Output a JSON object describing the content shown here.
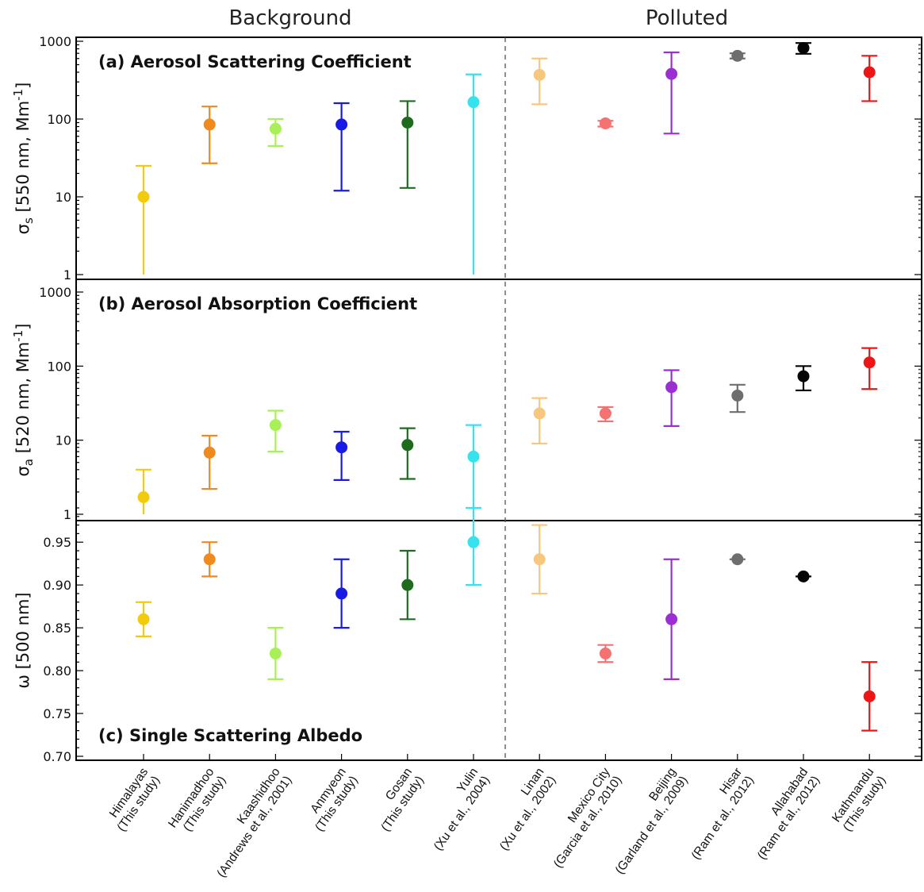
{
  "group_labels": [
    "Background",
    "Polluted"
  ],
  "chart_data": [
    {
      "type": "scatter",
      "title": "(a) Aerosol Scattering Coefficient",
      "ylabel": {
        "main": "σ",
        "sub": "s",
        "rest": " [550 nm, Mm",
        "sup": "-1",
        "end": "]"
      },
      "yscale": "log",
      "ylim": [
        1,
        1000
      ],
      "yticks": [
        "1",
        "10",
        "100",
        "1000"
      ],
      "points": [
        {
          "y": 10,
          "low": 1,
          "high": 25
        },
        {
          "y": 85,
          "low": 27,
          "high": 145
        },
        {
          "y": 75,
          "low": 45,
          "high": 100
        },
        {
          "y": 85,
          "low": 12,
          "high": 160
        },
        {
          "y": 90,
          "low": 13,
          "high": 170
        },
        {
          "y": 165,
          "low": 1,
          "high": 375
        },
        {
          "y": 370,
          "low": 155,
          "high": 600
        },
        {
          "y": 88,
          "low": 80,
          "high": 95
        },
        {
          "y": 380,
          "low": 65,
          "high": 720
        },
        {
          "y": 650,
          "low": 600,
          "high": 700
        },
        {
          "y": 820,
          "low": 690,
          "high": 950
        },
        {
          "y": 400,
          "low": 170,
          "high": 650
        }
      ]
    },
    {
      "type": "scatter",
      "title": "(b) Aerosol Absorption Coefficient",
      "ylabel": {
        "main": "σ",
        "sub": "a",
        "rest": " [520 nm, Mm",
        "sup": "-1",
        "end": "]"
      },
      "yscale": "log",
      "ylim": [
        1,
        1000
      ],
      "yticks": [
        "1",
        "10",
        "100",
        "1000"
      ],
      "points": [
        {
          "y": 1.7,
          "low": 1,
          "high": 4
        },
        {
          "y": 6.8,
          "low": 2.2,
          "high": 11.5
        },
        {
          "y": 16,
          "low": 7,
          "high": 25
        },
        {
          "y": 8,
          "low": 2.9,
          "high": 13
        },
        {
          "y": 8.6,
          "low": 3,
          "high": 14.5
        },
        {
          "y": 6,
          "low": 1,
          "high": 16
        },
        {
          "y": 23,
          "low": 9,
          "high": 37
        },
        {
          "y": 23,
          "low": 18,
          "high": 28
        },
        {
          "y": 52,
          "low": 15.5,
          "high": 88
        },
        {
          "y": 40,
          "low": 24,
          "high": 56
        },
        {
          "y": 73,
          "low": 47,
          "high": 100
        },
        {
          "y": 112,
          "low": 49,
          "high": 175
        }
      ]
    },
    {
      "type": "scatter",
      "title": "(c) Single Scattering Albedo",
      "ylabel": {
        "main": "ω [500 nm]"
      },
      "yscale": "linear",
      "ylim": [
        0.7,
        0.99
      ],
      "yticks": [
        "0.70",
        "0.75",
        "0.80",
        "0.85",
        "0.90",
        "0.95"
      ],
      "points": [
        {
          "y": 0.86,
          "low": 0.84,
          "high": 0.88
        },
        {
          "y": 0.93,
          "low": 0.91,
          "high": 0.95
        },
        {
          "y": 0.82,
          "low": 0.79,
          "high": 0.85
        },
        {
          "y": 0.89,
          "low": 0.85,
          "high": 0.93
        },
        {
          "y": 0.9,
          "low": 0.86,
          "high": 0.94
        },
        {
          "y": 0.95,
          "low": 0.9,
          "high": 0.99
        },
        {
          "y": 0.93,
          "low": 0.89,
          "high": 0.97
        },
        {
          "y": 0.82,
          "low": 0.81,
          "high": 0.83
        },
        {
          "y": 0.86,
          "low": 0.79,
          "high": 0.93
        },
        {
          "y": 0.93,
          "low": 0.93,
          "high": 0.93
        },
        {
          "y": 0.91,
          "low": 0.91,
          "high": 0.91
        },
        {
          "y": 0.77,
          "low": 0.73,
          "high": 0.81
        }
      ]
    }
  ],
  "sites": [
    {
      "name": "Himalayas",
      "ref": "(This study)",
      "color": "#f2cc0c",
      "label_color": "#111111"
    },
    {
      "name": "Hanimadhoo",
      "ref": "(This study)",
      "color": "#f08a1e",
      "label_color": "#111111"
    },
    {
      "name": "Kaashidhoo",
      "ref": "(Andrews et al., 2001)",
      "color": "#a8ef58",
      "label_color": "#111111"
    },
    {
      "name": "Anmyeon",
      "ref": "(This study)",
      "color": "#1a1ae6",
      "label_color": "#111111"
    },
    {
      "name": "Gosan",
      "ref": "(This study)",
      "color": "#1e6b1e",
      "label_color": "#111111"
    },
    {
      "name": "Yulin",
      "ref": "(Xu et al., 2004)",
      "color": "#35e2ee",
      "label_color": "#111111"
    },
    {
      "name": "Linan",
      "ref": "(Xu et al., 2002)",
      "color": "#f8c77e",
      "label_color": "#111111"
    },
    {
      "name": "Mexico City",
      "ref": "(Garcia et al., 2010)",
      "color": "#f47272",
      "label_color": "#111111"
    },
    {
      "name": "Beijing",
      "ref": "(Garland et al., 2009)",
      "color": "#9b2fd1",
      "label_color": "#111111"
    },
    {
      "name": "Hisar",
      "ref": "(Ram et al., 2012)",
      "color": "#6e6e6e",
      "label_color": "#111111"
    },
    {
      "name": "Allahabad",
      "ref": "(Ram et al., 2012)",
      "color": "#050505",
      "label_color": "#111111"
    },
    {
      "name": "Kathmandu",
      "ref": "(This study)",
      "color": "#f01515",
      "label_color": "#ff1a1a"
    }
  ]
}
